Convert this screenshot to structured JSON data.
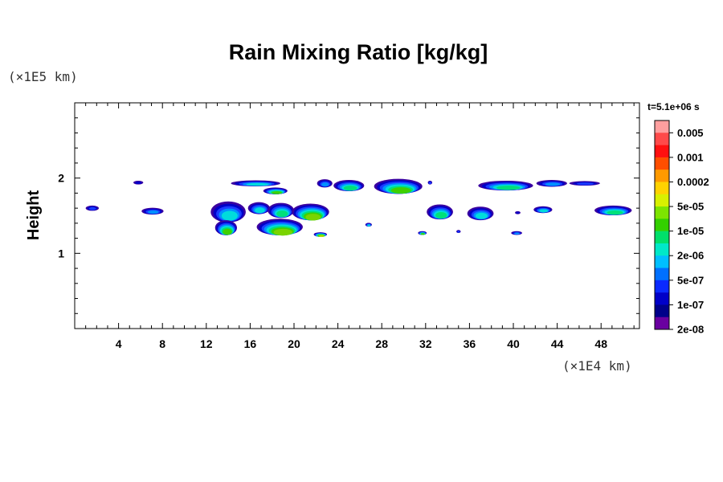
{
  "chart_data": {
    "type": "heatmap",
    "title": "Rain Mixing Ratio [kg/kg]",
    "ylabel": "Height",
    "xlabel": "",
    "x_unit": "(×1E4 km)",
    "y_unit": "(×1E5 km)",
    "time_label": "t=5.1e+06 s",
    "xlim": [
      0,
      51.5
    ],
    "ylim": [
      0,
      3
    ],
    "x_ticks": [
      4,
      8,
      12,
      16,
      20,
      24,
      28,
      32,
      36,
      40,
      44,
      48
    ],
    "x_tick_labels": [
      "4",
      "8",
      "12",
      "16",
      "20",
      "24",
      "28",
      "32",
      "36",
      "40",
      "44",
      "48"
    ],
    "y_ticks": [
      1,
      2
    ],
    "y_tick_labels": [
      "1",
      "2"
    ],
    "colorbar": {
      "labels": [
        "0.005",
        "0.001",
        "0.0002",
        "5e-05",
        "1e-05",
        "2e-06",
        "5e-07",
        "1e-07",
        "2e-08"
      ],
      "colors": [
        "#ff9f9f",
        "#ff4a4a",
        "#ff1010",
        "#ff4e00",
        "#ff9a00",
        "#ffd200",
        "#d8f000",
        "#7de400",
        "#33d000",
        "#00e06a",
        "#00e8c8",
        "#00bfff",
        "#0070ff",
        "#0a2aff",
        "#0000c8",
        "#00008a",
        "#6a00a0"
      ]
    },
    "features": [
      {
        "x": 1.6,
        "y": 1.6,
        "w": 1.2,
        "h": 0.07,
        "level": 2
      },
      {
        "x": 5.8,
        "y": 1.94,
        "w": 0.9,
        "h": 0.05,
        "level": 1
      },
      {
        "x": 7.1,
        "y": 1.56,
        "w": 2.0,
        "h": 0.09,
        "level": 3
      },
      {
        "x": 16.5,
        "y": 1.93,
        "w": 4.5,
        "h": 0.08,
        "level": 4
      },
      {
        "x": 18.3,
        "y": 1.83,
        "w": 2.2,
        "h": 0.09,
        "level": 6
      },
      {
        "x": 14.0,
        "y": 1.55,
        "w": 3.2,
        "h": 0.28,
        "level": 4
      },
      {
        "x": 13.8,
        "y": 1.34,
        "w": 2.0,
        "h": 0.2,
        "level": 6
      },
      {
        "x": 16.8,
        "y": 1.6,
        "w": 2.0,
        "h": 0.16,
        "level": 4
      },
      {
        "x": 18.8,
        "y": 1.57,
        "w": 2.4,
        "h": 0.2,
        "level": 5
      },
      {
        "x": 18.7,
        "y": 1.35,
        "w": 4.2,
        "h": 0.22,
        "level": 7
      },
      {
        "x": 21.5,
        "y": 1.55,
        "w": 3.4,
        "h": 0.22,
        "level": 7
      },
      {
        "x": 22.4,
        "y": 1.25,
        "w": 1.2,
        "h": 0.06,
        "level": 8
      },
      {
        "x": 22.8,
        "y": 1.93,
        "w": 1.4,
        "h": 0.11,
        "level": 3
      },
      {
        "x": 25.0,
        "y": 1.9,
        "w": 2.8,
        "h": 0.15,
        "level": 5
      },
      {
        "x": 29.5,
        "y": 1.89,
        "w": 4.4,
        "h": 0.2,
        "level": 6
      },
      {
        "x": 26.8,
        "y": 1.38,
        "w": 0.6,
        "h": 0.05,
        "level": 4
      },
      {
        "x": 31.7,
        "y": 1.27,
        "w": 0.8,
        "h": 0.05,
        "level": 6
      },
      {
        "x": 32.4,
        "y": 1.94,
        "w": 0.4,
        "h": 0.05,
        "level": 2
      },
      {
        "x": 33.3,
        "y": 1.55,
        "w": 2.4,
        "h": 0.2,
        "level": 5
      },
      {
        "x": 35.0,
        "y": 1.29,
        "w": 0.4,
        "h": 0.04,
        "level": 2
      },
      {
        "x": 37.0,
        "y": 1.53,
        "w": 2.4,
        "h": 0.18,
        "level": 4
      },
      {
        "x": 39.3,
        "y": 1.9,
        "w": 5.0,
        "h": 0.13,
        "level": 5
      },
      {
        "x": 43.5,
        "y": 1.93,
        "w": 2.8,
        "h": 0.09,
        "level": 3
      },
      {
        "x": 40.4,
        "y": 1.54,
        "w": 0.5,
        "h": 0.04,
        "level": 1
      },
      {
        "x": 40.3,
        "y": 1.27,
        "w": 1.0,
        "h": 0.05,
        "level": 3
      },
      {
        "x": 42.7,
        "y": 1.58,
        "w": 1.7,
        "h": 0.09,
        "level": 4
      },
      {
        "x": 46.5,
        "y": 1.93,
        "w": 2.8,
        "h": 0.06,
        "level": 2
      },
      {
        "x": 49.1,
        "y": 1.57,
        "w": 3.4,
        "h": 0.13,
        "level": 5
      }
    ]
  }
}
